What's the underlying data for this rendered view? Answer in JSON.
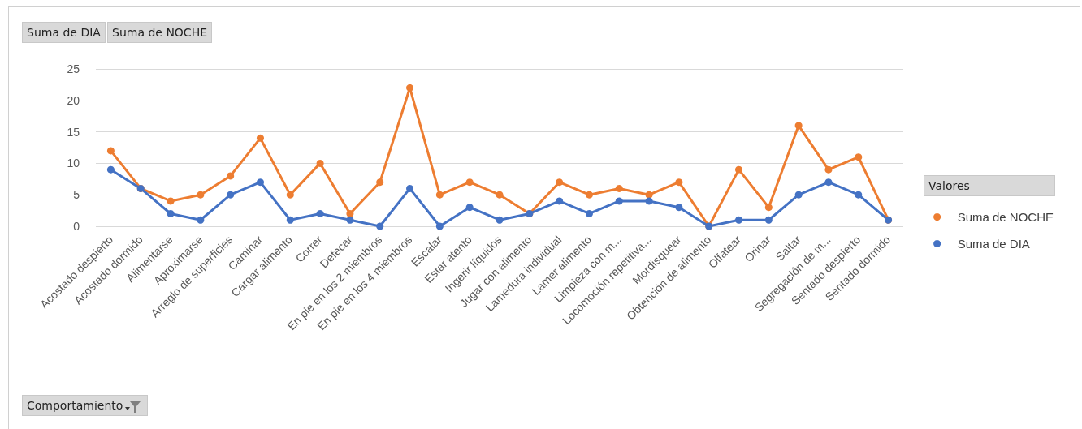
{
  "chart_data": {
    "type": "line",
    "categories": [
      "Acostado despierto",
      "Acostado dormido",
      "Alimentarse",
      "Aproximarse",
      "Arreglo de superficies",
      "Caminar",
      "Cargar alimento",
      "Correr",
      "Defecar",
      "En pie en los 2 miembros",
      "En pie en los 4 miembros",
      "Escalar",
      "Estar atento",
      "Ingerir líquidos",
      "Jugar con alimento",
      "Lamedura individual",
      "Lamer alimento",
      "Limpieza con m...",
      "Locomoción repetitiva...",
      "Mordisquear",
      "Obtención de alimento",
      "Olfatear",
      "Orinar",
      "Saltar",
      "Segregación de m...",
      "Sentado despierto",
      "Sentado dormido"
    ],
    "series": [
      {
        "name": "Suma de NOCHE",
        "color": "#ed7d31",
        "values": [
          12,
          6,
          4,
          5,
          8,
          14,
          5,
          10,
          2,
          7,
          22,
          5,
          7,
          5,
          2,
          7,
          5,
          6,
          5,
          7,
          0,
          9,
          3,
          16,
          9,
          11,
          1
        ]
      },
      {
        "name": "Suma de DIA",
        "color": "#4472c4",
        "values": [
          9,
          6,
          2,
          1,
          5,
          7,
          1,
          2,
          1,
          0,
          6,
          0,
          3,
          1,
          2,
          4,
          2,
          4,
          4,
          3,
          0,
          1,
          1,
          5,
          7,
          5,
          1
        ]
      }
    ],
    "ylim": [
      0,
      25
    ],
    "yticks": [
      0,
      5,
      10,
      15,
      20,
      25
    ],
    "legend_title": "Valores",
    "annotations": [
      "Suma de DIA",
      "Suma de NOCHE",
      "Comportamiento"
    ],
    "grid": "y",
    "legend": "right",
    "marker": "circle",
    "line_style": "solid"
  }
}
